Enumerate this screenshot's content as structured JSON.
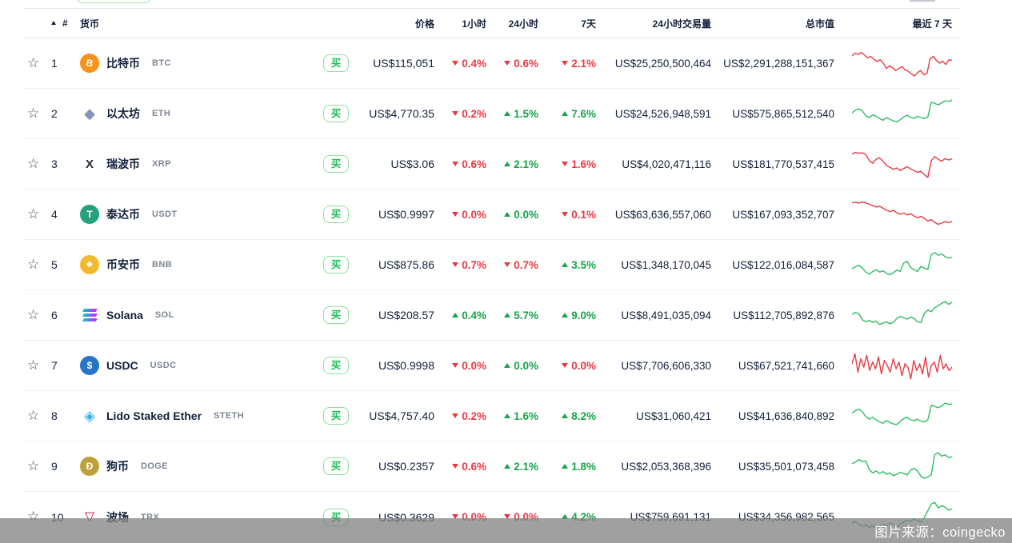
{
  "colors": {
    "red": "#ea3943",
    "green": "#16a34a",
    "spark_red": "#ea3943",
    "spark_green": "#2ebd64",
    "buy_green": "#1fbf56",
    "text_dark": "#13203a"
  },
  "watermark": {
    "text": "图片来源：coingecko"
  },
  "table": {
    "star_icon": "☆",
    "buy_label": "买",
    "headers": {
      "rank": "#",
      "coin": "货币",
      "price": "价格",
      "h1": "1小时",
      "h24": "24小时",
      "d7": "7天",
      "volume": "24小时交易量",
      "market_cap": "总市值",
      "last7d": "最近 7 天"
    },
    "rows": [
      {
        "rank": "1",
        "name": "比特币",
        "symbol": "BTC",
        "icon": {
          "type": "circle",
          "bg": "#f7931a",
          "fg": "#ffffff",
          "glyph": "B",
          "tilt": true
        },
        "price": "US$115,051",
        "h1": {
          "dir": "down",
          "text": "0.4%"
        },
        "h24": {
          "dir": "down",
          "text": "0.6%"
        },
        "d7": {
          "dir": "down",
          "text": "2.1%"
        },
        "volume": "US$25,250,500,464",
        "market_cap": "US$2,291,288,151,367",
        "spark": {
          "color": "red",
          "points": [
            72,
            80,
            76,
            82,
            74,
            66,
            70,
            62,
            55,
            60,
            50,
            34,
            42,
            36,
            28,
            34,
            40,
            30,
            26,
            18,
            12,
            22,
            28,
            16,
            20,
            64,
            70,
            58,
            50,
            56,
            46,
            60,
            58
          ]
        }
      },
      {
        "rank": "2",
        "name": "以太坊",
        "symbol": "ETH",
        "icon": {
          "type": "glyph",
          "fg": "#8a93b5",
          "glyph": "◆",
          "size": 18
        },
        "price": "US$4,770.35",
        "h1": {
          "dir": "down",
          "text": "0.2%"
        },
        "h24": {
          "dir": "up",
          "text": "1.5%"
        },
        "d7": {
          "dir": "up",
          "text": "7.6%"
        },
        "volume": "US$24,526,948,591",
        "market_cap": "US$575,865,512,540",
        "spark": {
          "color": "green",
          "points": [
            52,
            60,
            64,
            58,
            44,
            38,
            46,
            42,
            35,
            30,
            38,
            33,
            28,
            25,
            32,
            40,
            45,
            38,
            36,
            42,
            38,
            35,
            40,
            84,
            80,
            76,
            82,
            88,
            86,
            90
          ]
        }
      },
      {
        "rank": "3",
        "name": "瑞波币",
        "symbol": "XRP",
        "icon": {
          "type": "glyph",
          "fg": "#23292f",
          "glyph": "X",
          "size": 15,
          "weight": "800"
        },
        "price": "US$3.06",
        "h1": {
          "dir": "down",
          "text": "0.6%"
        },
        "h24": {
          "dir": "up",
          "text": "2.1%"
        },
        "d7": {
          "dir": "down",
          "text": "1.6%"
        },
        "volume": "US$4,020,471,116",
        "market_cap": "US$181,770,537,415",
        "spark": {
          "color": "red",
          "points": [
            80,
            84,
            82,
            83,
            78,
            60,
            52,
            64,
            68,
            58,
            45,
            40,
            34,
            38,
            30,
            36,
            42,
            35,
            30,
            25,
            28,
            18,
            10,
            60,
            72,
            64,
            58,
            66,
            62,
            65
          ]
        }
      },
      {
        "rank": "4",
        "name": "泰达币",
        "symbol": "USDT",
        "icon": {
          "type": "circle",
          "bg": "#26a17b",
          "fg": "#ffffff",
          "glyph": "T"
        },
        "price": "US$0.9997",
        "h1": {
          "dir": "down",
          "text": "0.0%"
        },
        "h24": {
          "dir": "up",
          "text": "0.0%"
        },
        "d7": {
          "dir": "down",
          "text": "0.1%"
        },
        "volume": "US$63,636,557,060",
        "market_cap": "US$167,093,352,707",
        "spark": {
          "color": "red",
          "points": [
            84,
            86,
            83,
            87,
            84,
            80,
            76,
            72,
            74,
            68,
            62,
            58,
            62,
            55,
            50,
            54,
            48,
            52,
            45,
            40,
            44,
            38,
            30,
            34,
            26,
            20,
            24,
            28,
            25,
            28
          ]
        }
      },
      {
        "rank": "5",
        "name": "币安币",
        "symbol": "BNB",
        "icon": {
          "type": "circle",
          "bg": "#f3ba2f",
          "fg": "#ffffff",
          "glyph": "◆",
          "size": 10
        },
        "price": "US$875.86",
        "h1": {
          "dir": "down",
          "text": "0.7%"
        },
        "h24": {
          "dir": "down",
          "text": "0.7%"
        },
        "d7": {
          "dir": "up",
          "text": "3.5%"
        },
        "volume": "US$1,348,170,045",
        "market_cap": "US$122,016,084,587",
        "spark": {
          "color": "green",
          "points": [
            38,
            44,
            48,
            40,
            28,
            22,
            30,
            35,
            28,
            32,
            24,
            20,
            26,
            34,
            30,
            55,
            60,
            42,
            35,
            30,
            45,
            40,
            36,
            80,
            86,
            78,
            82,
            74,
            70,
            72
          ]
        }
      },
      {
        "rank": "6",
        "name": "Solana",
        "symbol": "SOL",
        "icon": {
          "type": "sol"
        },
        "price": "US$208.57",
        "h1": {
          "dir": "up",
          "text": "0.4%"
        },
        "h24": {
          "dir": "up",
          "text": "5.7%"
        },
        "d7": {
          "dir": "up",
          "text": "9.0%"
        },
        "volume": "US$8,491,035,094",
        "market_cap": "US$112,705,892,876",
        "spark": {
          "color": "green",
          "points": [
            52,
            58,
            54,
            36,
            30,
            34,
            28,
            32,
            22,
            26,
            30,
            24,
            28,
            40,
            46,
            42,
            38,
            44,
            40,
            30,
            28,
            55,
            65,
            60,
            72,
            78,
            85,
            90,
            82,
            88
          ]
        }
      },
      {
        "rank": "7",
        "name": "USDC",
        "symbol": "USDC",
        "icon": {
          "type": "circle",
          "bg": "#2775ca",
          "fg": "#ffffff",
          "glyph": "$"
        },
        "price": "US$0.9998",
        "h1": {
          "dir": "down",
          "text": "0.0%"
        },
        "h24": {
          "dir": "up",
          "text": "0.0%"
        },
        "d7": {
          "dir": "down",
          "text": "0.0%"
        },
        "volume": "US$7,706,606,330",
        "market_cap": "US$67,521,741,660",
        "spark": {
          "color": "red",
          "points": [
            55,
            85,
            30,
            70,
            45,
            80,
            35,
            60,
            40,
            75,
            25,
            65,
            50,
            30,
            70,
            40,
            60,
            20,
            55,
            45,
            10,
            65,
            35,
            55,
            25,
            75,
            15,
            50,
            60,
            30,
            80,
            40,
            55,
            35,
            45
          ]
        }
      },
      {
        "rank": "8",
        "name": "Lido Staked Ether",
        "symbol": "STETH",
        "icon": {
          "type": "glyph",
          "fg": "#35b0e8",
          "glyph": "◈",
          "size": 18
        },
        "price": "US$4,757.40",
        "h1": {
          "dir": "down",
          "text": "0.2%"
        },
        "h24": {
          "dir": "up",
          "text": "1.6%"
        },
        "d7": {
          "dir": "up",
          "text": "8.2%"
        },
        "volume": "US$31,060,421",
        "market_cap": "US$41,636,840,892",
        "spark": {
          "color": "green",
          "points": [
            58,
            66,
            70,
            62,
            48,
            40,
            46,
            38,
            32,
            28,
            36,
            30,
            26,
            24,
            34,
            42,
            46,
            38,
            36,
            40,
            34,
            32,
            38,
            82,
            78,
            74,
            80,
            88,
            84,
            86
          ]
        }
      },
      {
        "rank": "9",
        "name": "狗币",
        "symbol": "DOGE",
        "icon": {
          "type": "circle",
          "bg": "#bda23a",
          "fg": "#ffffff",
          "glyph": "Ð"
        },
        "price": "US$0.2357",
        "h1": {
          "dir": "down",
          "text": "0.6%"
        },
        "h24": {
          "dir": "up",
          "text": "2.1%"
        },
        "d7": {
          "dir": "up",
          "text": "1.8%"
        },
        "volume": "US$2,053,368,396",
        "market_cap": "US$35,501,073,458",
        "spark": {
          "color": "green",
          "points": [
            58,
            62,
            70,
            64,
            66,
            40,
            30,
            36,
            28,
            34,
            26,
            30,
            22,
            26,
            32,
            28,
            24,
            38,
            44,
            36,
            20,
            14,
            18,
            25,
            85,
            90,
            80,
            84,
            76,
            78
          ]
        }
      },
      {
        "rank": "10",
        "name": "波场",
        "symbol": "TRX",
        "icon": {
          "type": "glyph",
          "fg": "#d9012c",
          "glyph": "▽",
          "size": 16,
          "weight": "700"
        },
        "price": "US$0.3629",
        "h1": {
          "dir": "down",
          "text": "0.0%"
        },
        "h24": {
          "dir": "down",
          "text": "0.0%"
        },
        "d7": {
          "dir": "up",
          "text": "4.2%"
        },
        "volume": "US$759,691,131",
        "market_cap": "US$34,356,982,565",
        "spark": {
          "color": "green",
          "points": [
            32,
            38,
            30,
            24,
            28,
            20,
            26,
            18,
            24,
            30,
            26,
            34,
            28,
            22,
            30,
            36,
            42,
            38,
            46,
            40,
            36,
            50,
            70,
            90,
            95,
            78,
            85,
            80,
            72,
            75
          ]
        }
      }
    ]
  }
}
